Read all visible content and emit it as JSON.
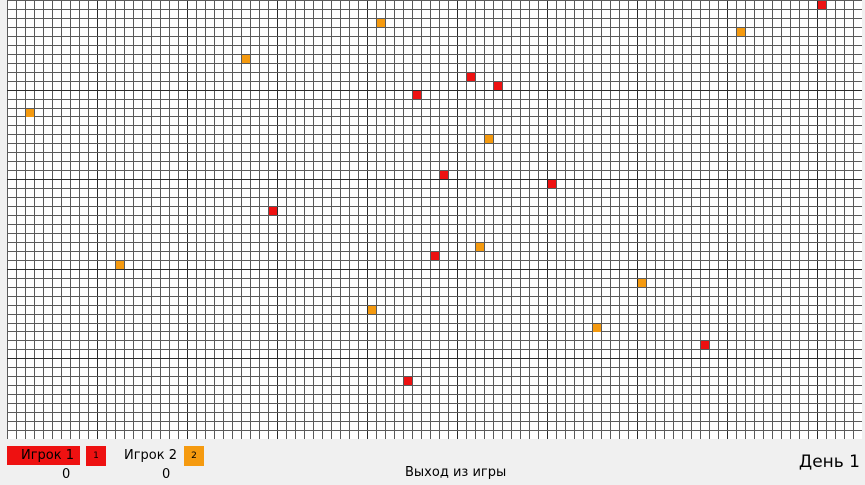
{
  "board": {
    "cols": 95,
    "rows": 49,
    "grid_color": "#5a5a5a",
    "major_grid_color": "#2a2a2a",
    "background": "#ffffff",
    "cells": [
      {
        "col": 90,
        "row": 0,
        "owner": 1
      },
      {
        "col": 41,
        "row": 2,
        "owner": 2
      },
      {
        "col": 81,
        "row": 3,
        "owner": 2
      },
      {
        "col": 26,
        "row": 6,
        "owner": 2
      },
      {
        "col": 51,
        "row": 8,
        "owner": 1
      },
      {
        "col": 54,
        "row": 9,
        "owner": 1
      },
      {
        "col": 45,
        "row": 10,
        "owner": 1
      },
      {
        "col": 2,
        "row": 12,
        "owner": 2
      },
      {
        "col": 53,
        "row": 15,
        "owner": 2
      },
      {
        "col": 48,
        "row": 19,
        "owner": 1
      },
      {
        "col": 60,
        "row": 20,
        "owner": 1
      },
      {
        "col": 29,
        "row": 23,
        "owner": 1
      },
      {
        "col": 52,
        "row": 27,
        "owner": 2
      },
      {
        "col": 47,
        "row": 28,
        "owner": 1
      },
      {
        "col": 12,
        "row": 29,
        "owner": 2
      },
      {
        "col": 70,
        "row": 31,
        "owner": 2
      },
      {
        "col": 40,
        "row": 34,
        "owner": 2
      },
      {
        "col": 65,
        "row": 36,
        "owner": 2
      },
      {
        "col": 77,
        "row": 38,
        "owner": 1
      },
      {
        "col": 44,
        "row": 42,
        "owner": 1
      }
    ]
  },
  "players": [
    {
      "name": "Игрок 1",
      "badge": "1",
      "score": "0",
      "color": "#ee1111"
    },
    {
      "name": "Игрок 2",
      "badge": "2",
      "score": "0",
      "color": "#f59a0f"
    }
  ],
  "exit_label": "Выход из игры",
  "day_label": "День 1"
}
